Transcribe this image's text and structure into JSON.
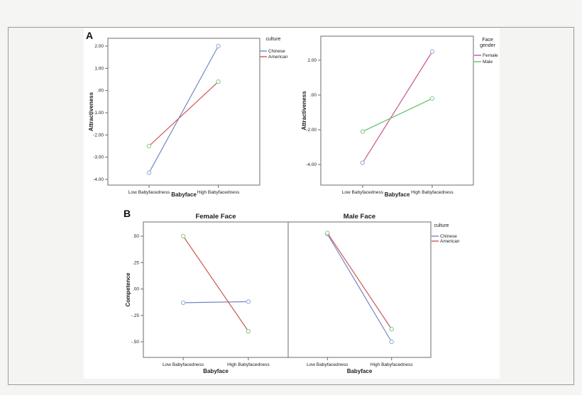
{
  "figure": {
    "panel_a_label": "A",
    "panel_b_label": "B"
  },
  "colors": {
    "page_bg": "#f5f5f4",
    "panel_border": "#9a9a9a",
    "figure_bg": "#ffffff",
    "plot_frame": "#6b6b6b",
    "series_blue": "#7586c1",
    "series_red": "#cc5656",
    "series_pink": "#c9538d",
    "series_green": "#5fc06a",
    "marker_blue": "#9db3de",
    "marker_green": "#8fd192"
  },
  "chart_data": [
    {
      "id": "attractiveness-by-culture",
      "panel": "A",
      "type": "line",
      "xlabel": "Babyface",
      "ylabel": "Attractiveness",
      "categories": [
        "Low Babyfacedness",
        "High Babyfacedness"
      ],
      "yticks": [
        2,
        1,
        0,
        -1,
        -2,
        -3,
        -4
      ],
      "ytick_labels": [
        "2.00",
        "1.00",
        ".00",
        "-1.00",
        "-2.00",
        "-3.00",
        "-4.00"
      ],
      "ylim": [
        -4.3,
        2.35
      ],
      "grid": false,
      "legend": {
        "title_lines": [
          "culture"
        ],
        "position": "right",
        "items": [
          "Chinese",
          "American"
        ]
      },
      "series": [
        {
          "name": "Chinese",
          "values": [
            -3.7,
            2.0
          ],
          "line_color": "#7586c1",
          "marker_color": "#9db3de"
        },
        {
          "name": "American",
          "values": [
            -2.5,
            0.4
          ],
          "line_color": "#cc5656",
          "marker_color": "#8fd192"
        }
      ]
    },
    {
      "id": "attractiveness-by-face-gender",
      "panel": "A",
      "type": "line",
      "xlabel": "Babyface",
      "ylabel": "Attractiveness",
      "categories": [
        "Low Babyfacedness",
        "High Babyfacedness"
      ],
      "yticks": [
        2,
        0,
        -2,
        -4
      ],
      "ytick_labels": [
        "2.00",
        ".00",
        "-2.00",
        "-4.00"
      ],
      "ylim": [
        -5.2,
        3.4
      ],
      "grid": false,
      "legend": {
        "title_lines": [
          "Face",
          "gender"
        ],
        "position": "right",
        "items": [
          "Female",
          "Male"
        ]
      },
      "series": [
        {
          "name": "Female",
          "values": [
            -3.9,
            2.5
          ],
          "line_color": "#c9538d",
          "marker_color": "#9db3de"
        },
        {
          "name": "Male",
          "values": [
            -2.1,
            -0.2
          ],
          "line_color": "#5fc06a",
          "marker_color": "#8fd192"
        }
      ]
    },
    {
      "id": "competence-by-culture-faceted",
      "panel": "B",
      "type": "line",
      "xlabel": "Babyface",
      "ylabel": "Competence",
      "categories": [
        "Low Babyfacedness",
        "High Babyfacedness"
      ],
      "yticks": [
        0.5,
        0.25,
        0,
        -0.25,
        -0.5
      ],
      "ytick_labels": [
        ".50",
        ".25",
        ".00",
        "-.25",
        "-.50"
      ],
      "ylim": [
        -0.65,
        0.63
      ],
      "grid": false,
      "legend": {
        "title_lines": [
          "culture"
        ],
        "position": "right",
        "items": [
          "Chinese",
          "American"
        ]
      },
      "facets": [
        {
          "title": "Female Face",
          "series": [
            {
              "name": "Chinese",
              "values": [
                -0.13,
                -0.12
              ],
              "line_color": "#7586c1",
              "marker_color": "#9db3de"
            },
            {
              "name": "American",
              "values": [
                0.5,
                -0.4
              ],
              "line_color": "#cc5656",
              "marker_color": "#8fd192"
            }
          ]
        },
        {
          "title": "Male Face",
          "series": [
            {
              "name": "Chinese",
              "values": [
                0.52,
                -0.5
              ],
              "line_color": "#7586c1",
              "marker_color": "#9db3de"
            },
            {
              "name": "American",
              "values": [
                0.53,
                -0.38
              ],
              "line_color": "#cc5656",
              "marker_color": "#8fd192"
            }
          ]
        }
      ]
    }
  ]
}
